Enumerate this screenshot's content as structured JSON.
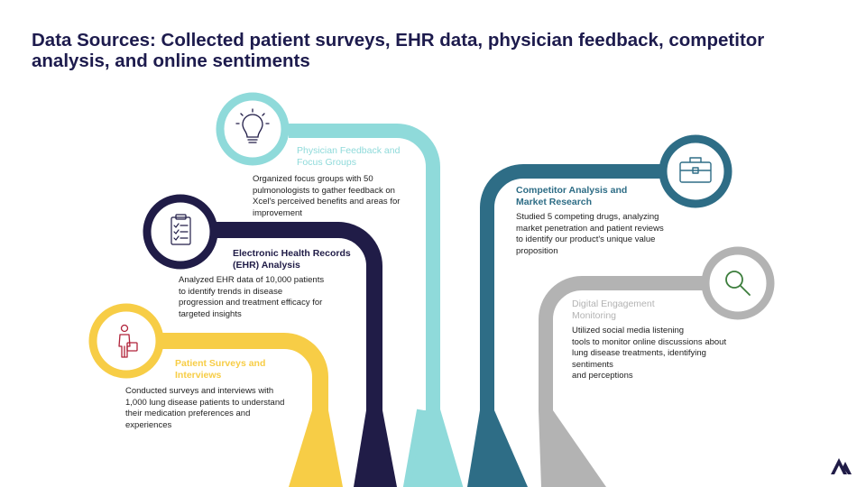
{
  "title": "Data Sources: Collected patient surveys, EHR data, physician feedback, competitor analysis, and online sentiments",
  "colors": {
    "patient": "#f7cd46",
    "ehr": "#201c47",
    "physician": "#8fdada",
    "competitor": "#2e6d86",
    "digital": "#b3b3b3",
    "icon_red": "#b0233a",
    "icon_green": "#3c7d3c"
  },
  "sources": {
    "physician": {
      "icon": "lightbulb-icon",
      "heading": "Physician Feedback and\nFocus Groups",
      "description": "Organized focus groups with 50\npulmonologists to gather feedback on\nXcel's perceived benefits and areas for\nimprovement"
    },
    "ehr": {
      "icon": "clipboard-checklist-icon",
      "heading": "Electronic Health Records\n(EHR) Analysis",
      "description": "Analyzed EHR data of 10,000 patients\nto identify trends in disease\nprogression and treatment efficacy for\ntargeted insights"
    },
    "patient": {
      "icon": "person-survey-icon",
      "heading": "Patient Surveys and\nInterviews",
      "description": "Conducted surveys and interviews with\n1,000 lung disease patients to understand\ntheir medication preferences and\nexperiences"
    },
    "competitor": {
      "icon": "briefcase-icon",
      "heading": "Competitor Analysis and\nMarket Research",
      "description": "Studied 5 competing drugs, analyzing\nmarket penetration and patient reviews\nto identify our product's unique value\nproposition"
    },
    "digital": {
      "icon": "magnifier-icon",
      "heading": "Digital Engagement\nMonitoring",
      "description": "Utilized social media listening\ntools to monitor online discussions about\nlung disease treatments, identifying\nsentiments\nand perceptions"
    }
  },
  "logo": "brand-logo-icon"
}
